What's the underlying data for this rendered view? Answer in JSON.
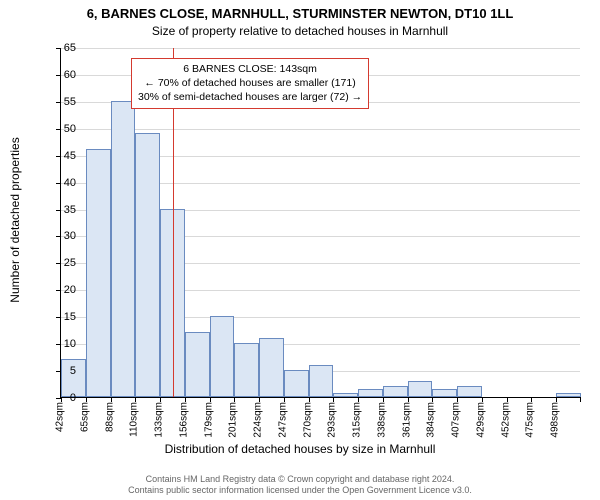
{
  "title_main": "6, BARNES CLOSE, MARNHULL, STURMINSTER NEWTON, DT10 1LL",
  "title_sub": "Size of property relative to detached houses in Marnhull",
  "ylabel": "Number of detached properties",
  "xlabel": "Distribution of detached houses by size in Marnhull",
  "chart": {
    "type": "histogram",
    "background_color": "#ffffff",
    "grid_color": "#d9d9d9",
    "axis_color": "#000000",
    "bar_fill": "#dbe6f4",
    "bar_border": "#6a8bc0",
    "ylim": [
      0,
      65
    ],
    "ytick_step": 5,
    "x_start": 42,
    "x_end": 509,
    "x_bin_width_sqm": 22.65,
    "x_tick_labels": [
      "42sqm",
      "65sqm",
      "88sqm",
      "110sqm",
      "133sqm",
      "156sqm",
      "179sqm",
      "201sqm",
      "224sqm",
      "247sqm",
      "270sqm",
      "293sqm",
      "315sqm",
      "338sqm",
      "361sqm",
      "384sqm",
      "407sqm",
      "429sqm",
      "452sqm",
      "475sqm",
      "498sqm"
    ],
    "values": [
      7,
      46,
      55,
      49,
      35,
      12,
      15,
      10,
      11,
      5,
      6,
      0.7,
      1.5,
      2,
      3,
      1.5,
      2,
      0,
      0,
      0,
      0.7
    ],
    "reference_line": {
      "x_sqm": 143,
      "color": "#d43a2f"
    },
    "annotation": {
      "border_color": "#d43a2f",
      "lines": [
        "6 BARNES CLOSE: 143sqm",
        "← 70% of detached houses are smaller (171)",
        "30% of semi-detached houses are larger (72) →"
      ]
    }
  },
  "copyright_l1": "Contains HM Land Registry data © Crown copyright and database right 2024.",
  "copyright_l2": "Contains public sector information licensed under the Open Government Licence v3.0."
}
